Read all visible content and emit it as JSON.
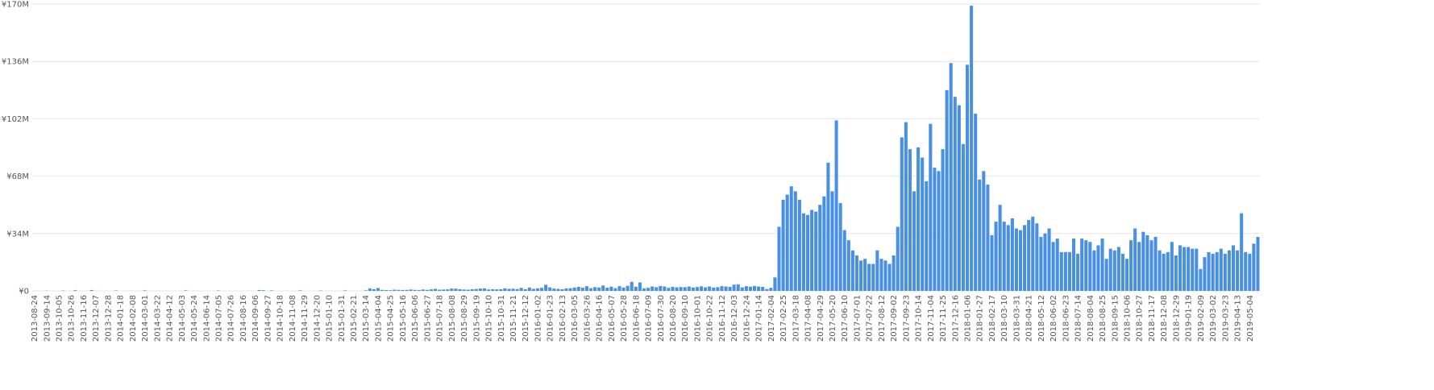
{
  "chart_data": {
    "type": "bar",
    "color": "#4a90e2",
    "grid": true,
    "ylim": [
      0,
      170000000
    ],
    "yticks": [
      {
        "value": 0,
        "label": "¥0"
      },
      {
        "value": 34000000,
        "label": "¥34M"
      },
      {
        "value": 68000000,
        "label": "¥68M"
      },
      {
        "value": 102000000,
        "label": "¥102M"
      },
      {
        "value": 136000000,
        "label": "¥136M"
      },
      {
        "value": 170000000,
        "label": "¥170M"
      }
    ],
    "categories": [
      "2013-08-24",
      null,
      null,
      "2013-09-14",
      null,
      null,
      "2013-10-05",
      null,
      null,
      "2013-10-26",
      null,
      null,
      "2013-11-16",
      null,
      null,
      "2013-12-07",
      null,
      null,
      "2013-12-28",
      null,
      null,
      "2014-01-18",
      null,
      null,
      "2014-02-08",
      null,
      null,
      "2014-03-01",
      null,
      null,
      "2014-03-22",
      null,
      null,
      "2014-04-12",
      null,
      null,
      "2014-05-03",
      null,
      null,
      "2014-05-24",
      null,
      null,
      "2014-06-14",
      null,
      null,
      "2014-07-05",
      null,
      null,
      "2014-07-26",
      null,
      null,
      "2014-08-16",
      null,
      null,
      "2014-09-06",
      null,
      null,
      "2014-09-27",
      null,
      null,
      "2014-10-18",
      null,
      null,
      "2014-11-08",
      null,
      null,
      "2014-11-29",
      null,
      null,
      "2014-12-20",
      null,
      null,
      "2015-01-10",
      null,
      null,
      "2015-01-31",
      null,
      null,
      "2015-02-21",
      null,
      null,
      "2015-03-14",
      null,
      null,
      "2015-04-04",
      null,
      null,
      "2015-04-25",
      null,
      null,
      "2015-05-16",
      null,
      null,
      "2015-06-06",
      null,
      null,
      "2015-06-27",
      null,
      null,
      "2015-07-18",
      null,
      null,
      "2015-08-08",
      null,
      null,
      "2015-08-29",
      null,
      null,
      "2015-09-19",
      null,
      null,
      "2015-10-10",
      null,
      null,
      "2015-10-31",
      null,
      null,
      "2015-11-21",
      null,
      null,
      "2015-12-12",
      null,
      null,
      "2016-01-02",
      null,
      null,
      "2016-01-23",
      null,
      null,
      "2016-02-13",
      null,
      null,
      "2016-03-05",
      null,
      null,
      "2016-03-26",
      null,
      null,
      "2016-04-16",
      null,
      null,
      "2016-05-07",
      null,
      null,
      "2016-05-28",
      null,
      null,
      "2016-06-18",
      null,
      null,
      "2016-07-09",
      null,
      null,
      "2016-07-30",
      null,
      null,
      "2016-08-20",
      null,
      null,
      "2016-09-10",
      null,
      null,
      "2016-10-01",
      null,
      null,
      "2016-10-22",
      null,
      null,
      "2016-11-12",
      null,
      null,
      "2016-12-03",
      null,
      null,
      "2016-12-24",
      null,
      null,
      "2017-01-14",
      null,
      null,
      "2017-02-04",
      null,
      null,
      "2017-02-25",
      null,
      null,
      "2017-03-18",
      null,
      null,
      "2017-04-08",
      null,
      null,
      "2017-04-29",
      null,
      null,
      "2017-05-20",
      null,
      null,
      "2017-06-10",
      null,
      null,
      "2017-07-01",
      null,
      null,
      "2017-07-22",
      null,
      null,
      "2017-08-12",
      null,
      null,
      "2017-09-02",
      null,
      null,
      "2017-09-23",
      null,
      null,
      "2017-10-14",
      null,
      null,
      "2017-11-04",
      null,
      null,
      "2017-11-25",
      null,
      null,
      "2017-12-16",
      null,
      null,
      "2018-01-06",
      null,
      null,
      "2018-01-27",
      null,
      null,
      "2018-02-17",
      null,
      null,
      "2018-03-10",
      null,
      null,
      "2018-03-31",
      null,
      null,
      "2018-04-21",
      null,
      null,
      "2018-05-12",
      null,
      null,
      "2018-06-02",
      null,
      null,
      "2018-06-23",
      null,
      null,
      "2018-07-14",
      null,
      null,
      "2018-08-04",
      null,
      null,
      "2018-08-25",
      null,
      null,
      "2018-09-15",
      null,
      null,
      "2018-10-06",
      null,
      null,
      "2018-10-27",
      null,
      null,
      "2018-11-17",
      null,
      null,
      "2018-12-08",
      null,
      null,
      "2018-12-29",
      null,
      null,
      "2019-01-19",
      null,
      null,
      "2019-02-09",
      null,
      null,
      "2019-03-02",
      null,
      null,
      "2019-03-23",
      null,
      null,
      "2019-04-13",
      null,
      null,
      "2019-05-04",
      null,
      null
    ],
    "values": [
      0,
      0,
      0,
      100000,
      0,
      0,
      0,
      200000,
      0,
      0,
      400000,
      0,
      0,
      0,
      500000,
      0,
      0,
      0,
      0,
      0,
      200000,
      0,
      0,
      0,
      0,
      0,
      0,
      300000,
      0,
      0,
      0,
      0,
      0,
      0,
      0,
      0,
      0,
      300000,
      0,
      0,
      0,
      0,
      0,
      0,
      0,
      200000,
      0,
      0,
      0,
      0,
      0,
      0,
      0,
      0,
      0,
      500000,
      400000,
      0,
      300000,
      0,
      0,
      0,
      0,
      0,
      0,
      300000,
      0,
      0,
      0,
      0,
      200000,
      0,
      0,
      0,
      0,
      0,
      300000,
      0,
      0,
      0,
      0,
      300000,
      1500000,
      1000000,
      1700000,
      600000,
      500000,
      400000,
      700000,
      600000,
      500000,
      600000,
      800000,
      600000,
      500000,
      800000,
      600000,
      900000,
      1200000,
      700000,
      800000,
      900000,
      1400000,
      1300000,
      1000000,
      800000,
      700000,
      1000000,
      1100000,
      1400000,
      1500000,
      800000,
      1000000,
      900000,
      1000000,
      1500000,
      1200000,
      1300000,
      1100000,
      1800000,
      1000000,
      2000000,
      1200000,
      1500000,
      1800000,
      3600000,
      2100000,
      1400000,
      1200000,
      1000000,
      1500000,
      1600000,
      2000000,
      2400000,
      1900000,
      2800000,
      1600000,
      2200000,
      2000000,
      3200000,
      1900000,
      2500000,
      1600000,
      2800000,
      2000000,
      3000000,
      5400000,
      2500000,
      5000000,
      1500000,
      1800000,
      2600000,
      2200000,
      2900000,
      2600000,
      1800000,
      2400000,
      2100000,
      2300000,
      2200000,
      2600000,
      2000000,
      2300000,
      2700000,
      2100000,
      2600000,
      1900000,
      2200000,
      2800000,
      2600000,
      2400000,
      3700000,
      3900000,
      2100000,
      2800000,
      2500000,
      2900000,
      2600000,
      2400000,
      1100000,
      1800000,
      8000000,
      38000000,
      54000000,
      57000000,
      62000000,
      59000000,
      54000000,
      46000000,
      45000000,
      48000000,
      47000000,
      51000000,
      56000000,
      76000000,
      59000000,
      101000000,
      52000000,
      36000000,
      30000000,
      24000000,
      21000000,
      18000000,
      19000000,
      16000000,
      16000000,
      24000000,
      19000000,
      18000000,
      16000000,
      21000000,
      38000000,
      91000000,
      100000000,
      84000000,
      59000000,
      85000000,
      79000000,
      65000000,
      99000000,
      73000000,
      71000000,
      84000000,
      119000000,
      135000000,
      115000000,
      110000000,
      87000000,
      134000000,
      169000000,
      105000000,
      66000000,
      71000000,
      63000000,
      33000000,
      41000000,
      51000000,
      41000000,
      39000000,
      43000000,
      37000000,
      36000000,
      39000000,
      42000000,
      44000000,
      40000000,
      32000000,
      34000000,
      37000000,
      29000000,
      31000000,
      23000000,
      23000000,
      23000000,
      31000000,
      22000000,
      31000000,
      30000000,
      29000000,
      24000000,
      27000000,
      31000000,
      19000000,
      25000000,
      24000000,
      26000000,
      22000000,
      19000000,
      30000000,
      37000000,
      29000000,
      35000000,
      33000000,
      30000000,
      32000000,
      24000000,
      22000000,
      23000000,
      29000000,
      21000000,
      27000000,
      26000000,
      26000000,
      25000000,
      25000000,
      13000000,
      20000000,
      23000000,
      22000000,
      23000000,
      25000000,
      22000000,
      24000000,
      27000000,
      24000000,
      46000000,
      23000000,
      22000000,
      28000000,
      32000000
    ]
  }
}
